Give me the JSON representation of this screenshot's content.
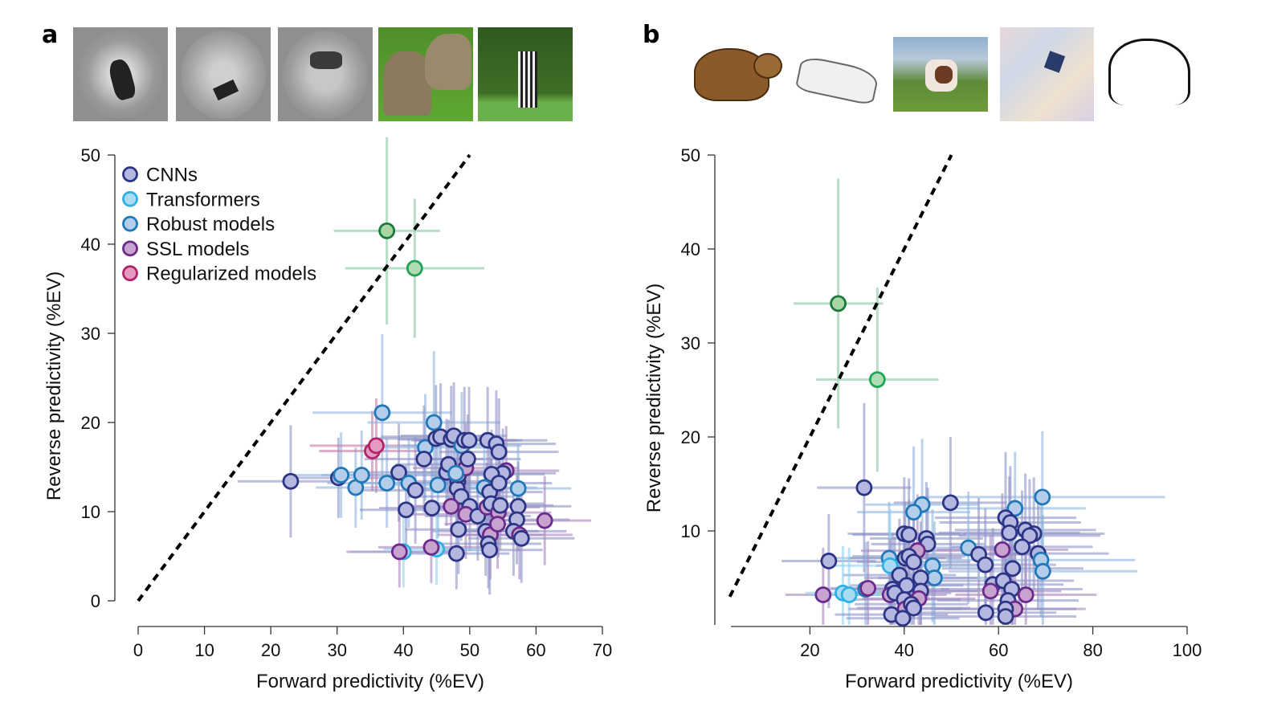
{
  "panels": [
    {
      "letter": "a",
      "thumbnails": [
        {
          "label": "grayscale-bear-on-rocks",
          "style": "gray"
        },
        {
          "label": "grayscale-animal-in-field",
          "style": "gray"
        },
        {
          "label": "grayscale-lion-in-field",
          "style": "gray"
        },
        {
          "label": "elephants-color-photo",
          "style": "color"
        },
        {
          "label": "zebra-color-photo",
          "style": "color"
        }
      ]
    },
    {
      "letter": "b",
      "thumbnails": [
        {
          "label": "cartoon-bear",
          "style": "cartoon"
        },
        {
          "label": "sketch-car",
          "style": "sketch"
        },
        {
          "label": "painting-dog",
          "style": "painting"
        },
        {
          "label": "stylized-mosaic-bird",
          "style": "mosaic"
        },
        {
          "label": "line-drawing-elephant",
          "style": "lineart"
        }
      ]
    }
  ],
  "legend": [
    {
      "key": "cnn",
      "label": "CNNs",
      "fill": "#b4b8e0",
      "stroke": "#2c3585"
    },
    {
      "key": "transformer",
      "label": "Transformers",
      "fill": "#a9dcf2",
      "stroke": "#2fb1e3"
    },
    {
      "key": "robust",
      "label": "Robust models",
      "fill": "#b3cdeb",
      "stroke": "#2078b8"
    },
    {
      "key": "ssl",
      "label": "SSL models",
      "fill": "#c9a3cf",
      "stroke": "#6b2b8c"
    },
    {
      "key": "reg",
      "label": "Regularized models",
      "fill": "#e79ac0",
      "stroke": "#b0246a"
    },
    {
      "key": "brain",
      "label": "",
      "fill": "#a8d5a2",
      "stroke": "#1a7a3c"
    },
    {
      "key": "brain2",
      "label": "",
      "fill": "#afdcb3",
      "stroke": "#1fa357"
    }
  ],
  "chart_data": [
    {
      "type": "scatter",
      "title": "a",
      "xlabel": "Forward predictivity (%EV)",
      "ylabel": "Reverse predictivity (%EV)",
      "xlim": [
        0,
        70
      ],
      "ylim": [
        0,
        50
      ],
      "xticks": [
        0,
        10,
        20,
        30,
        40,
        50,
        60,
        70
      ],
      "yticks": [
        0,
        10,
        20,
        30,
        40,
        50
      ],
      "diagonal": "y = x (dashed)",
      "legend_position": "top-left",
      "points": [
        {
          "g": "brain",
          "x": 37.5,
          "y": 41.5,
          "xe": 8,
          "ye": 10.5
        },
        {
          "g": "brain2",
          "x": 41.7,
          "y": 37.3,
          "xe": 10.5,
          "ye": 7.8
        },
        {
          "g": "cnn",
          "x": 23.0,
          "y": 13.4,
          "xe": 8,
          "ye": 6.3
        },
        {
          "g": "cnn",
          "x": 30.2,
          "y": 13.8,
          "xe": 8,
          "ye": 4.5
        },
        {
          "g": "robust",
          "x": 30.6,
          "y": 14.1,
          "xe": 8,
          "ye": 4.8
        },
        {
          "g": "robust",
          "x": 32.8,
          "y": 12.7,
          "xe": 6,
          "ye": 4.5
        },
        {
          "g": "robust",
          "x": 33.7,
          "y": 14.1,
          "xe": 6,
          "ye": 5
        },
        {
          "g": "reg",
          "x": 35.3,
          "y": 16.8,
          "xe": 8,
          "ye": 4.5
        },
        {
          "g": "reg",
          "x": 35.9,
          "y": 17.4,
          "xe": 10,
          "ye": 5.3
        },
        {
          "g": "robust",
          "x": 36.8,
          "y": 21.1,
          "xe": 10.5,
          "ye": 8.8
        },
        {
          "g": "robust",
          "x": 37.5,
          "y": 13.2,
          "xe": 9,
          "ye": 5
        },
        {
          "g": "cnn",
          "x": 39.3,
          "y": 14.4,
          "xe": 9,
          "ye": 5.5
        },
        {
          "g": "cnn",
          "x": 40.4,
          "y": 10.2,
          "xe": 7,
          "ye": 5
        },
        {
          "g": "robust",
          "x": 40.8,
          "y": 13.2,
          "xe": 8,
          "ye": 5
        },
        {
          "g": "cnn",
          "x": 41.8,
          "y": 12.4,
          "xe": 8,
          "ye": 6
        },
        {
          "g": "robust",
          "x": 43.3,
          "y": 17.2,
          "xe": 9,
          "ye": 6
        },
        {
          "g": "cnn",
          "x": 43.1,
          "y": 15.9,
          "xe": 9,
          "ye": 6
        },
        {
          "g": "robust",
          "x": 44.6,
          "y": 20.0,
          "xe": 10,
          "ye": 8
        },
        {
          "g": "cnn",
          "x": 44.9,
          "y": 18.2,
          "xe": 9,
          "ye": 6
        },
        {
          "g": "cnn",
          "x": 45.6,
          "y": 18.4,
          "xe": 9,
          "ye": 6
        },
        {
          "g": "robust",
          "x": 45.2,
          "y": 13.0,
          "xe": 8,
          "ye": 6
        },
        {
          "g": "cnn",
          "x": 44.3,
          "y": 10.4,
          "xe": 8,
          "ye": 5
        },
        {
          "g": "cnn",
          "x": 46.5,
          "y": 14.4,
          "xe": 8,
          "ye": 6
        },
        {
          "g": "cnn",
          "x": 47.2,
          "y": 18.1,
          "xe": 8,
          "ye": 6
        },
        {
          "g": "cnn",
          "x": 47.6,
          "y": 18.5,
          "xe": 8,
          "ye": 6
        },
        {
          "g": "robust",
          "x": 48.8,
          "y": 17.4,
          "xe": 9,
          "ye": 6
        },
        {
          "g": "cnn",
          "x": 49.2,
          "y": 18.0,
          "xe": 8,
          "ye": 6
        },
        {
          "g": "cnn",
          "x": 48.2,
          "y": 13.4,
          "xe": 8,
          "ye": 5
        },
        {
          "g": "cnn",
          "x": 48.1,
          "y": 12.6,
          "xe": 8,
          "ye": 5
        },
        {
          "g": "cnn",
          "x": 48.3,
          "y": 14.1,
          "xe": 8,
          "ye": 5
        },
        {
          "g": "cnn",
          "x": 48.7,
          "y": 11.7,
          "xe": 8,
          "ye": 5
        },
        {
          "g": "ssl",
          "x": 49.4,
          "y": 14.9,
          "xe": 8,
          "ye": 5
        },
        {
          "g": "cnn",
          "x": 49.7,
          "y": 15.9,
          "xe": 8,
          "ye": 5
        },
        {
          "g": "cnn",
          "x": 49.9,
          "y": 18.0,
          "xe": 8,
          "ye": 6
        },
        {
          "g": "cnn",
          "x": 46.8,
          "y": 15.3,
          "xe": 8,
          "ye": 5
        },
        {
          "g": "robust",
          "x": 47.9,
          "y": 14.3,
          "xe": 8,
          "ye": 5
        },
        {
          "g": "cnn",
          "x": 52.7,
          "y": 18.0,
          "xe": 9,
          "ye": 6
        },
        {
          "g": "cnn",
          "x": 54.0,
          "y": 17.6,
          "xe": 9,
          "ye": 6
        },
        {
          "g": "cnn",
          "x": 54.4,
          "y": 16.7,
          "xe": 9,
          "ye": 6
        },
        {
          "g": "ssl",
          "x": 55.5,
          "y": 14.6,
          "xe": 8,
          "ye": 5
        },
        {
          "g": "cnn",
          "x": 55.0,
          "y": 14.3,
          "xe": 8,
          "ye": 5
        },
        {
          "g": "cnn",
          "x": 53.3,
          "y": 14.2,
          "xe": 8,
          "ye": 5
        },
        {
          "g": "robust",
          "x": 52.2,
          "y": 12.7,
          "xe": 8,
          "ye": 5
        },
        {
          "g": "cnn",
          "x": 53.0,
          "y": 12.2,
          "xe": 8,
          "ye": 5
        },
        {
          "g": "cnn",
          "x": 54.4,
          "y": 13.2,
          "xe": 8,
          "ye": 5
        },
        {
          "g": "robust",
          "x": 57.3,
          "y": 12.6,
          "xe": 8,
          "ye": 5
        },
        {
          "g": "cnn",
          "x": 57.3,
          "y": 10.6,
          "xe": 8,
          "ye": 5
        },
        {
          "g": "cnn",
          "x": 48.3,
          "y": 8.0,
          "xe": 8,
          "ye": 5
        },
        {
          "g": "cnn",
          "x": 50.0,
          "y": 10.6,
          "xe": 8,
          "ye": 5
        },
        {
          "g": "ssl",
          "x": 47.2,
          "y": 10.6,
          "xe": 8,
          "ye": 5
        },
        {
          "g": "ssl",
          "x": 49.4,
          "y": 9.7,
          "xe": 8,
          "ye": 5
        },
        {
          "g": "cnn",
          "x": 51.2,
          "y": 9.5,
          "xe": 8,
          "ye": 5
        },
        {
          "g": "ssl",
          "x": 52.6,
          "y": 10.5,
          "xe": 8,
          "ye": 5
        },
        {
          "g": "cnn",
          "x": 53.2,
          "y": 10.9,
          "xe": 8,
          "ye": 5
        },
        {
          "g": "ssl",
          "x": 54.3,
          "y": 9.9,
          "xe": 8,
          "ye": 5
        },
        {
          "g": "cnn",
          "x": 54.6,
          "y": 10.7,
          "xe": 8,
          "ye": 5
        },
        {
          "g": "cnn",
          "x": 52.4,
          "y": 7.8,
          "xe": 8,
          "ye": 5
        },
        {
          "g": "ssl",
          "x": 53.1,
          "y": 7.4,
          "xe": 8,
          "ye": 5
        },
        {
          "g": "ssl",
          "x": 54.2,
          "y": 8.6,
          "xe": 8,
          "ye": 5
        },
        {
          "g": "cnn",
          "x": 52.8,
          "y": 6.4,
          "xe": 8,
          "ye": 5
        },
        {
          "g": "cnn",
          "x": 53.0,
          "y": 5.7,
          "xe": 8,
          "ye": 5
        },
        {
          "g": "cnn",
          "x": 57.1,
          "y": 9.1,
          "xe": 8,
          "ye": 5
        },
        {
          "g": "cnn",
          "x": 56.6,
          "y": 7.8,
          "xe": 8,
          "ye": 5
        },
        {
          "g": "ssl",
          "x": 57.5,
          "y": 7.4,
          "xe": 8,
          "ye": 5
        },
        {
          "g": "cnn",
          "x": 57.8,
          "y": 7.0,
          "xe": 8,
          "ye": 5
        },
        {
          "g": "ssl",
          "x": 61.3,
          "y": 9.0,
          "xe": 7,
          "ye": 5
        },
        {
          "g": "transformer",
          "x": 40.0,
          "y": 5.5,
          "xe": 8,
          "ye": 4
        },
        {
          "g": "ssl",
          "x": 39.4,
          "y": 5.5,
          "xe": 8,
          "ye": 4
        },
        {
          "g": "transformer",
          "x": 45.0,
          "y": 5.8,
          "xe": 8,
          "ye": 4
        },
        {
          "g": "ssl",
          "x": 44.2,
          "y": 6.0,
          "xe": 8,
          "ye": 4
        },
        {
          "g": "cnn",
          "x": 48.0,
          "y": 5.3,
          "xe": 8,
          "ye": 4
        }
      ]
    },
    {
      "type": "scatter",
      "title": "b",
      "xlabel": "Forward predictivity (%EV)",
      "ylabel": "Reverse predictivity (%EV)",
      "xlim": [
        3,
        100
      ],
      "ylim": [
        0,
        50
      ],
      "xticks": [
        20,
        40,
        60,
        80,
        100
      ],
      "yticks": [
        10,
        20,
        30,
        40,
        50
      ],
      "diagonal": "y = x (dashed)",
      "points": [
        {
          "g": "brain",
          "x": 26.0,
          "y": 34.2,
          "xe": 9.5,
          "ye": 13.3
        },
        {
          "g": "brain2",
          "x": 34.3,
          "y": 26.1,
          "xe": 13,
          "ye": 9.8
        },
        {
          "g": "cnn",
          "x": 31.5,
          "y": 14.6,
          "xe": 10,
          "ye": 9
        },
        {
          "g": "cnn",
          "x": 49.8,
          "y": 13.0,
          "xe": 12,
          "ye": 7
        },
        {
          "g": "robust",
          "x": 43.8,
          "y": 12.8,
          "xe": 12,
          "ye": 7
        },
        {
          "g": "robust",
          "x": 42.0,
          "y": 12.0,
          "xe": 12,
          "ye": 7
        },
        {
          "g": "robust",
          "x": 69.3,
          "y": 13.6,
          "xe": 26,
          "ye": 7
        },
        {
          "g": "robust",
          "x": 63.5,
          "y": 12.4,
          "xe": 15,
          "ye": 6
        },
        {
          "g": "cnn",
          "x": 61.5,
          "y": 11.4,
          "xe": 15,
          "ye": 7
        },
        {
          "g": "cnn",
          "x": 62.5,
          "y": 10.9,
          "xe": 15,
          "ye": 6
        },
        {
          "g": "cnn",
          "x": 62.3,
          "y": 9.8,
          "xe": 15,
          "ye": 6
        },
        {
          "g": "cnn",
          "x": 65.7,
          "y": 10.1,
          "xe": 15,
          "ye": 6
        },
        {
          "g": "cnn",
          "x": 67.5,
          "y": 9.7,
          "xe": 15,
          "ye": 6
        },
        {
          "g": "cnn",
          "x": 66.6,
          "y": 9.5,
          "xe": 15,
          "ye": 6
        },
        {
          "g": "cnn",
          "x": 40.0,
          "y": 9.7,
          "xe": 12,
          "ye": 6
        },
        {
          "g": "cnn",
          "x": 41.0,
          "y": 9.6,
          "xe": 12,
          "ye": 6
        },
        {
          "g": "cnn",
          "x": 44.7,
          "y": 9.2,
          "xe": 12,
          "ye": 6
        },
        {
          "g": "cnn",
          "x": 45.0,
          "y": 8.6,
          "xe": 12,
          "ye": 6
        },
        {
          "g": "ssl",
          "x": 42.8,
          "y": 7.9,
          "xe": 12,
          "ye": 6
        },
        {
          "g": "robust",
          "x": 53.6,
          "y": 8.2,
          "xe": 14,
          "ye": 6
        },
        {
          "g": "cnn",
          "x": 55.8,
          "y": 7.5,
          "xe": 14,
          "ye": 6
        },
        {
          "g": "ssl",
          "x": 60.8,
          "y": 8.0,
          "xe": 14,
          "ye": 6
        },
        {
          "g": "cnn",
          "x": 65.0,
          "y": 8.3,
          "xe": 15,
          "ye": 6
        },
        {
          "g": "cnn",
          "x": 68.4,
          "y": 7.6,
          "xe": 15,
          "ye": 6
        },
        {
          "g": "robust",
          "x": 69.0,
          "y": 6.9,
          "xe": 20,
          "ye": 6
        },
        {
          "g": "robust",
          "x": 69.4,
          "y": 5.7,
          "xe": 20,
          "ye": 6
        },
        {
          "g": "cnn",
          "x": 57.2,
          "y": 6.4,
          "xe": 15,
          "ye": 6
        },
        {
          "g": "cnn",
          "x": 63.0,
          "y": 6.0,
          "xe": 15,
          "ye": 6
        },
        {
          "g": "cnn",
          "x": 24.0,
          "y": 6.8,
          "xe": 10,
          "ye": 5
        },
        {
          "g": "robust",
          "x": 36.8,
          "y": 7.1,
          "xe": 12,
          "ye": 6
        },
        {
          "g": "transformer",
          "x": 37.0,
          "y": 6.3,
          "xe": 12,
          "ye": 6
        },
        {
          "g": "cnn",
          "x": 40.2,
          "y": 7.1,
          "xe": 12,
          "ye": 6
        },
        {
          "g": "cnn",
          "x": 41.0,
          "y": 7.3,
          "xe": 12,
          "ye": 6
        },
        {
          "g": "cnn",
          "x": 42.0,
          "y": 6.7,
          "xe": 12,
          "ye": 6
        },
        {
          "g": "robust",
          "x": 46.0,
          "y": 6.3,
          "xe": 12,
          "ye": 6
        },
        {
          "g": "robust",
          "x": 46.4,
          "y": 5.0,
          "xe": 12,
          "ye": 6
        },
        {
          "g": "cnn",
          "x": 39.0,
          "y": 5.3,
          "xe": 12,
          "ye": 6
        },
        {
          "g": "cnn",
          "x": 43.5,
          "y": 5.0,
          "xe": 12,
          "ye": 6
        },
        {
          "g": "cnn",
          "x": 40.5,
          "y": 4.2,
          "xe": 12,
          "ye": 6
        },
        {
          "g": "cnn",
          "x": 43.5,
          "y": 3.6,
          "xe": 12,
          "ye": 6
        },
        {
          "g": "cnn",
          "x": 37.5,
          "y": 3.8,
          "xe": 12,
          "ye": 6
        },
        {
          "g": "ssl",
          "x": 37.0,
          "y": 3.2,
          "xe": 12,
          "ye": 6
        },
        {
          "g": "cnn",
          "x": 38.0,
          "y": 3.4,
          "xe": 12,
          "ye": 6
        },
        {
          "g": "ssl",
          "x": 22.8,
          "y": 3.2,
          "xe": 8,
          "ye": 5
        },
        {
          "g": "transformer",
          "x": 27.0,
          "y": 3.4,
          "xe": 8,
          "ye": 5
        },
        {
          "g": "transformer",
          "x": 28.3,
          "y": 3.2,
          "xe": 8,
          "ye": 5
        },
        {
          "g": "robust",
          "x": 31.8,
          "y": 3.8,
          "xe": 8,
          "ye": 5
        },
        {
          "g": "ssl",
          "x": 32.3,
          "y": 3.9,
          "xe": 8,
          "ye": 5
        },
        {
          "g": "cnn",
          "x": 40.0,
          "y": 2.7,
          "xe": 12,
          "ye": 6
        },
        {
          "g": "ssl",
          "x": 40.2,
          "y": 1.7,
          "xe": 12,
          "ye": 6
        },
        {
          "g": "ssl",
          "x": 43.1,
          "y": 2.8,
          "xe": 12,
          "ye": 6
        },
        {
          "g": "cnn",
          "x": 41.5,
          "y": 2.2,
          "xe": 12,
          "ye": 6
        },
        {
          "g": "cnn",
          "x": 42.0,
          "y": 1.8,
          "xe": 12,
          "ye": 6
        },
        {
          "g": "cnn",
          "x": 37.3,
          "y": 1.1,
          "xe": 12,
          "ye": 6
        },
        {
          "g": "cnn",
          "x": 39.7,
          "y": 0.7,
          "xe": 12,
          "ye": 6
        },
        {
          "g": "cnn",
          "x": 58.8,
          "y": 4.3,
          "xe": 15,
          "ye": 6
        },
        {
          "g": "ssl",
          "x": 58.3,
          "y": 3.6,
          "xe": 15,
          "ye": 6
        },
        {
          "g": "cnn",
          "x": 61.0,
          "y": 4.7,
          "xe": 15,
          "ye": 6
        },
        {
          "g": "cnn",
          "x": 62.8,
          "y": 3.8,
          "xe": 15,
          "ye": 6
        },
        {
          "g": "cnn",
          "x": 62.0,
          "y": 2.6,
          "xe": 15,
          "ye": 6
        },
        {
          "g": "ssl",
          "x": 65.8,
          "y": 3.2,
          "xe": 15,
          "ye": 6
        },
        {
          "g": "ssl",
          "x": 63.5,
          "y": 1.7,
          "xe": 15,
          "ye": 6
        },
        {
          "g": "cnn",
          "x": 61.5,
          "y": 1.7,
          "xe": 15,
          "ye": 6
        },
        {
          "g": "cnn",
          "x": 57.3,
          "y": 1.3,
          "xe": 15,
          "ye": 6
        },
        {
          "g": "cnn",
          "x": 61.5,
          "y": 0.9,
          "xe": 15,
          "ye": 6
        }
      ]
    }
  ]
}
